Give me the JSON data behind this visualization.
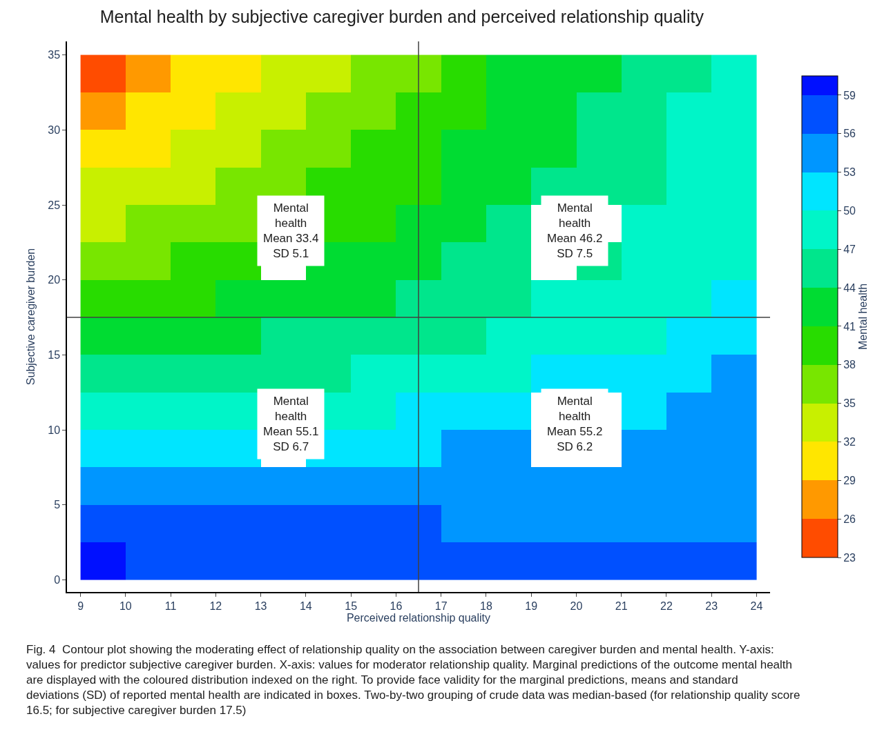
{
  "chart_data": {
    "type": "heatmap",
    "title": "Mental health by subjective caregiver burden and perceived relationship quality",
    "xlabel": "Perceived relationship quality",
    "ylabel": "Subjective caregiver burden",
    "clabel": "Mental health",
    "x": [
      9.5,
      10.5,
      11.5,
      12.5,
      13.5,
      14.5,
      15.5,
      16.5,
      17.5,
      18.5,
      19.5,
      20.5,
      21.5,
      22.5,
      23.5
    ],
    "y": [
      33.75,
      31.25,
      28.75,
      26.25,
      23.75,
      21.25,
      18.75,
      16.25,
      13.75,
      11.25,
      8.75,
      6.25,
      3.75,
      1.25
    ],
    "cells": [
      [
        25.5,
        27.5,
        29,
        30.5,
        32,
        33.5,
        35,
        37,
        39.5,
        41,
        42.5,
        43.5,
        45,
        46.5,
        47.5
      ],
      [
        28.5,
        29.5,
        31,
        32.5,
        34,
        35.5,
        37,
        38.5,
        40.5,
        41.5,
        43,
        44,
        45.5,
        47,
        48
      ],
      [
        30.5,
        31.5,
        32.5,
        34,
        35.3,
        36.5,
        38,
        39.5,
        41,
        42.3,
        43.5,
        44.5,
        46,
        47.3,
        48.2
      ],
      [
        32.5,
        33.5,
        34.5,
        35.5,
        36.8,
        38,
        39.3,
        40.5,
        41.8,
        43,
        44.2,
        45.2,
        46.5,
        47.5,
        48.5
      ],
      [
        34.5,
        35.3,
        36.3,
        37.3,
        null,
        39.5,
        40.5,
        41.7,
        42.8,
        44,
        null,
        null,
        47,
        48,
        49
      ],
      [
        36.5,
        37.3,
        38.2,
        39.2,
        null,
        41.2,
        42.2,
        43.2,
        44.2,
        45.2,
        null,
        46.8,
        47.7,
        48.5,
        49.5
      ],
      [
        38.8,
        39.5,
        40.3,
        41.2,
        42,
        42.8,
        43.7,
        44.5,
        45.5,
        46.3,
        47,
        47.7,
        48.5,
        49.3,
        50.5
      ],
      [
        41.2,
        41.8,
        42.5,
        43.2,
        44,
        44.6,
        45.3,
        46,
        46.8,
        47.5,
        48.2,
        48.8,
        49.6,
        50.5,
        52.5
      ],
      [
        44,
        44.5,
        45,
        45.6,
        46.2,
        46.8,
        47.3,
        47.8,
        48.5,
        49.2,
        50,
        50.5,
        51.3,
        52,
        53.3
      ],
      [
        47.3,
        47.7,
        48.1,
        48.5,
        null,
        49.4,
        49.8,
        50.2,
        50.6,
        51,
        null,
        null,
        52.5,
        53.1,
        53.7
      ],
      [
        51,
        51.2,
        51.5,
        51.8,
        null,
        52.2,
        52.5,
        52.8,
        53.1,
        53.4,
        null,
        null,
        54,
        54.2,
        54.5
      ],
      [
        53.7,
        53.8,
        53.9,
        54,
        54.1,
        54.2,
        54.3,
        54.4,
        54.5,
        54.6,
        54.7,
        54.8,
        54.9,
        55,
        55.2
      ],
      [
        56.4,
        56.3,
        56.3,
        56.2,
        56.2,
        56.1,
        56.1,
        56,
        55.9,
        55.8,
        55.8,
        55.7,
        55.6,
        55.4,
        55.2
      ],
      [
        59.2,
        58.9,
        58.7,
        58.6,
        58.4,
        58.2,
        58.1,
        58,
        57.8,
        57.6,
        57.4,
        57.2,
        57,
        56.7,
        56.1
      ]
    ],
    "colors": [
      "#ff4c00",
      "#ff9900",
      "#ffe600",
      "#c8f000",
      "#78e600",
      "#28dc00",
      "#00dc32",
      "#00e68c",
      "#00f5c8",
      "#00e5ff",
      "#0096ff",
      "#0050ff",
      "#0010ff"
    ],
    "clim": [
      23,
      60.5
    ],
    "cticks": [
      23,
      26,
      29,
      32,
      35,
      38,
      41,
      44,
      47,
      50,
      53,
      56,
      59
    ],
    "xlim": [
      8.7,
      24.3
    ],
    "ylim": [
      -0.8,
      35.9
    ],
    "xticks": [
      9,
      10,
      11,
      12,
      13,
      14,
      15,
      16,
      17,
      18,
      19,
      20,
      21,
      22,
      23,
      24
    ],
    "yticks": [
      0,
      5,
      10,
      15,
      20,
      25,
      30,
      35
    ],
    "ref_lines": [
      {
        "axis": "x",
        "value": 16.5,
        "color": "#404040"
      },
      {
        "axis": "y",
        "value": 17.5,
        "color": "#404040"
      }
    ],
    "annotations": [
      "Mental\nhealth\nMean 33.4\nSD 5.1",
      "Mental\nhealth\nMean 46.2\nSD 7.5",
      "Mental\nhealth\nMean 55.1\nSD 6.7",
      "Mental\nhealth\nMean 55.2\nSD 6.2",
      "Fig. 4  Contour plot showing the moderating effect of relationship quality on the association between caregiver burden and mental health. Y-axis: values for predictor subjective caregiver burden. X-axis: values for moderator relationship quality. Marginal predictions of the outcome mental health are displayed with the coloured distribution indexed on the right. To provide face validity for the marginal predictions, means and standard deviations (SD) of reported mental health are indicated in boxes. Two-by-two grouping of crude data was median-based (for relationship quality score 16.5; for subjective caregiver burden 17.5)"
    ]
  }
}
